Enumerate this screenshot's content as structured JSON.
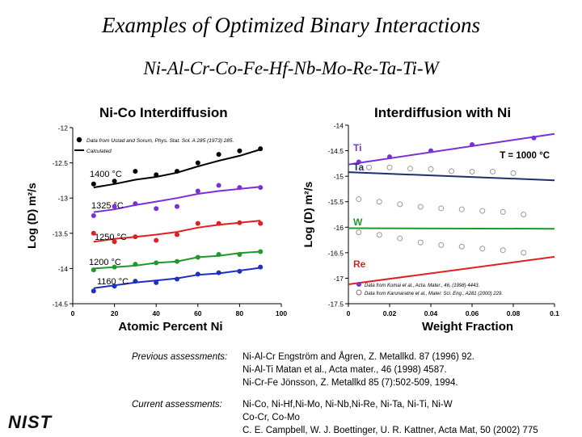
{
  "title": "Examples of Optimized Binary Interactions",
  "subtitle": "Ni-Al-Cr-Co-Fe-Hf-Nb-Mo-Re-Ta-Ti-W",
  "logo": "NIST",
  "colors": {
    "black": "#000000",
    "purple": "#7b2fd6",
    "red": "#e02020",
    "green": "#1f9a2a",
    "blue": "#1f2fc0",
    "navy": "#1f2f6a"
  },
  "chart_data": [
    {
      "type": "line",
      "title": "Ni-Co Interdiffusion",
      "xlabel": "Atomic Percent Ni",
      "ylabel": "Log (D) m²/s",
      "xlim": [
        0,
        100
      ],
      "ylim": [
        -14.5,
        -12
      ],
      "xticks": [
        "0",
        "20",
        "40",
        "60",
        "80",
        "100"
      ],
      "yticks": [
        "-12",
        "-12.5",
        "-13",
        "-13.5",
        "-14",
        "-14.5"
      ],
      "legend": [
        {
          "marker": "dot",
          "text": "Data from Ustad and Sorum, Phys. Stat. Sol. A 285 (1973) 285."
        },
        {
          "marker": "line",
          "text": "Calculated"
        }
      ],
      "series": [
        {
          "name": "1400 °C",
          "color": "#000000",
          "x": [
            10,
            20,
            30,
            40,
            50,
            60,
            70,
            80,
            90
          ],
          "points": [
            -12.8,
            -12.76,
            -12.62,
            -12.67,
            -12.62,
            -12.5,
            -12.38,
            -12.33,
            -12.3
          ],
          "curve": [
            [
              10,
              -12.85
            ],
            [
              20,
              -12.8
            ],
            [
              30,
              -12.74
            ],
            [
              40,
              -12.7
            ],
            [
              50,
              -12.64
            ],
            [
              60,
              -12.55
            ],
            [
              70,
              -12.47
            ],
            [
              80,
              -12.4
            ],
            [
              90,
              -12.31
            ]
          ]
        },
        {
          "name": "1325 °C",
          "color": "#7b2fd6",
          "x": [
            10,
            20,
            30,
            40,
            50,
            60,
            70,
            80,
            90
          ],
          "points": [
            -13.25,
            -13.12,
            -13.08,
            -13.15,
            -13.12,
            -12.9,
            -12.82,
            -12.85,
            -12.85
          ],
          "curve": [
            [
              10,
              -13.2
            ],
            [
              20,
              -13.16
            ],
            [
              30,
              -13.1
            ],
            [
              40,
              -13.05
            ],
            [
              50,
              -13.0
            ],
            [
              60,
              -12.94
            ],
            [
              70,
              -12.9
            ],
            [
              80,
              -12.87
            ],
            [
              90,
              -12.84
            ]
          ]
        },
        {
          "name": "1250 °C",
          "color": "#e02020",
          "x": [
            10,
            20,
            30,
            40,
            50,
            60,
            70,
            80,
            90
          ],
          "points": [
            -13.5,
            -13.62,
            -13.55,
            -13.6,
            -13.52,
            -13.36,
            -13.36,
            -13.35,
            -13.36
          ],
          "curve": [
            [
              10,
              -13.62
            ],
            [
              20,
              -13.58
            ],
            [
              30,
              -13.55
            ],
            [
              40,
              -13.52
            ],
            [
              50,
              -13.48
            ],
            [
              60,
              -13.42
            ],
            [
              70,
              -13.38
            ],
            [
              80,
              -13.35
            ],
            [
              90,
              -13.32
            ]
          ]
        },
        {
          "name": "1200 °C",
          "color": "#1f9a2a",
          "x": [
            10,
            20,
            30,
            40,
            50,
            60,
            70,
            80,
            90
          ],
          "points": [
            -14.02,
            -13.98,
            -13.94,
            -13.92,
            -13.9,
            -13.84,
            -13.8,
            -13.8,
            -13.76
          ],
          "curve": [
            [
              10,
              -14.0
            ],
            [
              20,
              -13.98
            ],
            [
              30,
              -13.96
            ],
            [
              40,
              -13.92
            ],
            [
              50,
              -13.9
            ],
            [
              60,
              -13.84
            ],
            [
              70,
              -13.82
            ],
            [
              80,
              -13.78
            ],
            [
              90,
              -13.76
            ]
          ]
        },
        {
          "name": "1160 °C",
          "color": "#1f2fc0",
          "x": [
            10,
            20,
            30,
            40,
            50,
            60,
            70,
            80,
            90
          ],
          "points": [
            -14.32,
            -14.25,
            -14.18,
            -14.2,
            -14.15,
            -14.08,
            -14.06,
            -14.04,
            -13.98
          ],
          "curve": [
            [
              10,
              -14.28
            ],
            [
              20,
              -14.24
            ],
            [
              30,
              -14.2
            ],
            [
              40,
              -14.17
            ],
            [
              50,
              -14.14
            ],
            [
              60,
              -14.09
            ],
            [
              70,
              -14.07
            ],
            [
              80,
              -14.03
            ],
            [
              90,
              -13.99
            ]
          ]
        }
      ]
    },
    {
      "type": "line",
      "title": "Interdiffusion with Ni",
      "xlabel": "Weight Fraction",
      "ylabel": "Log (D) m²/s",
      "xlim": [
        0,
        0.1
      ],
      "ylim": [
        -17.5,
        -14
      ],
      "xticks": [
        "0",
        "0.02",
        "0.04",
        "0.06",
        "0.08",
        "0.1"
      ],
      "yticks": [
        "-14",
        "-14.5",
        "-15",
        "-15.5",
        "-16",
        "-16.5",
        "-17",
        "-17.5"
      ],
      "annotation": "T = 1000 °C",
      "legend": [
        {
          "marker": "dot",
          "text": "Data from Komai et al., Acta. Mater., 46, (1998) 4443."
        },
        {
          "marker": "circle",
          "text": "Data from Karunaratne et al., Mater. Sci. Eng., A281 (2000) 229."
        }
      ],
      "series": [
        {
          "name": "Ti",
          "color": "#7b2fd6",
          "points": [
            [
              0.005,
              -14.72
            ],
            [
              0.02,
              -14.62
            ],
            [
              0.04,
              -14.5
            ],
            [
              0.06,
              -14.38
            ],
            [
              0.09,
              -14.25
            ]
          ],
          "curve": [
            [
              0,
              -14.77
            ],
            [
              0.1,
              -14.17
            ]
          ]
        },
        {
          "name": "Ta",
          "color": "#1f2f6a",
          "open_points": [
            [
              0.01,
              -14.83
            ],
            [
              0.02,
              -14.83
            ],
            [
              0.03,
              -14.85
            ],
            [
              0.04,
              -14.86
            ],
            [
              0.05,
              -14.9
            ],
            [
              0.06,
              -14.91
            ],
            [
              0.07,
              -14.91
            ],
            [
              0.08,
              -14.94
            ]
          ],
          "curve": [
            [
              0,
              -14.92
            ],
            [
              0.1,
              -15.08
            ]
          ]
        },
        {
          "name": "W",
          "color": "#1f9a2a",
          "open_points": [
            [
              0.005,
              -15.45
            ],
            [
              0.015,
              -15.5
            ],
            [
              0.025,
              -15.55
            ],
            [
              0.035,
              -15.6
            ],
            [
              0.045,
              -15.63
            ],
            [
              0.055,
              -15.65
            ],
            [
              0.065,
              -15.68
            ],
            [
              0.075,
              -15.7
            ],
            [
              0.085,
              -15.75
            ]
          ],
          "curve": [
            [
              0,
              -16.02
            ],
            [
              0.1,
              -16.03
            ]
          ]
        },
        {
          "name": "Re",
          "color": "#e02020",
          "open_points": [
            [
              0.005,
              -16.1
            ],
            [
              0.015,
              -16.15
            ],
            [
              0.025,
              -16.22
            ],
            [
              0.035,
              -16.3
            ],
            [
              0.045,
              -16.35
            ],
            [
              0.055,
              -16.38
            ],
            [
              0.065,
              -16.42
            ],
            [
              0.075,
              -16.45
            ],
            [
              0.085,
              -16.5
            ]
          ],
          "curve": [
            [
              0,
              -17.12
            ],
            [
              0.1,
              -16.58
            ]
          ]
        }
      ]
    }
  ],
  "notes": {
    "previous_label": "Previous assessments:",
    "previous": [
      "Ni-Al-Cr Engström and Ågren, Z. Metallkd. 87 (1996) 92.",
      "Ni-Al-Ti  Matan et al., Acta mater., 46 (1998) 4587.",
      "Ni-Cr-Fe Jönsson, Z. Metallkd 85 (7):502-509, 1994."
    ],
    "current_label": "Current assessments:",
    "current": [
      "Ni-Co, Ni-Hf,Ni-Mo, Ni-Nb,Ni-Re, Ni-Ta, Ni-Ti, Ni-W",
      "Co-Cr, Co-Mo",
      "C. E. Campbell, W. J. Boettinger, U. R. Kattner, Acta Mat, 50 (2002) 775"
    ]
  }
}
